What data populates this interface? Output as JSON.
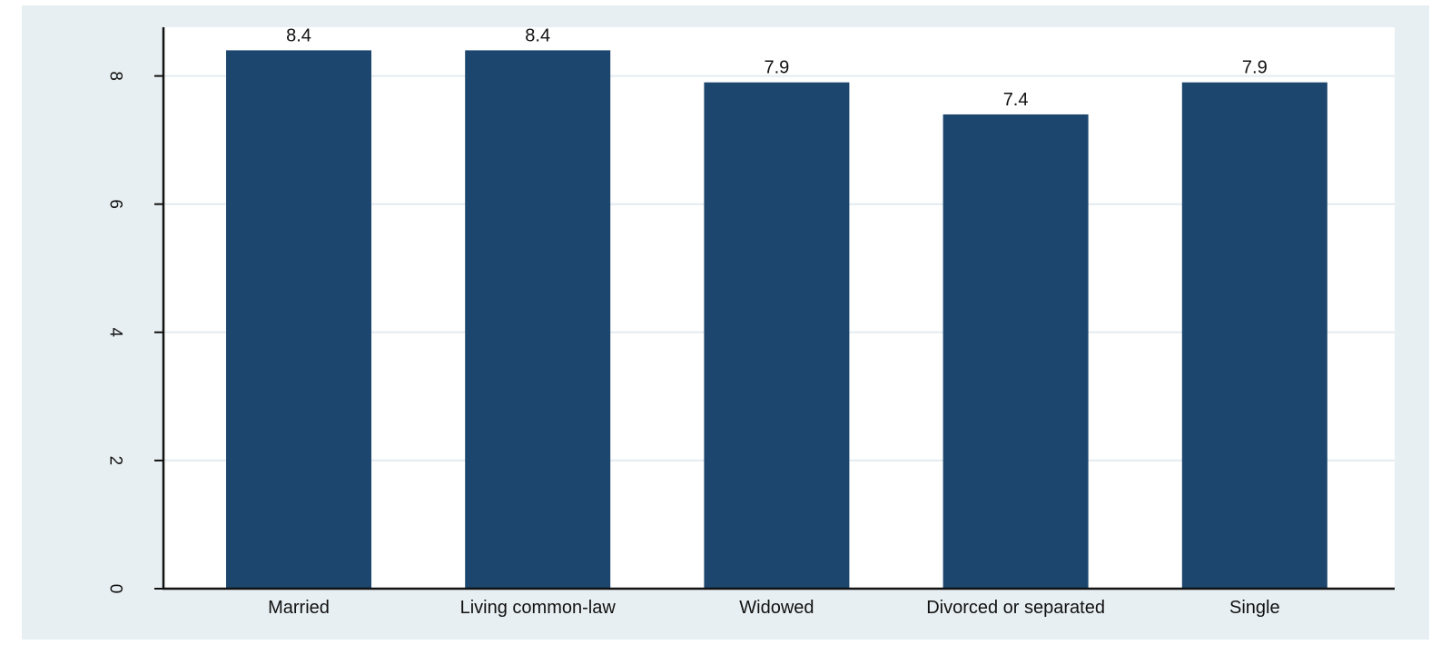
{
  "chart_data": {
    "type": "bar",
    "title": "",
    "xlabel": "",
    "ylabel": "",
    "categories": [
      "Married",
      "Living common-law",
      "Widowed",
      "Divorced or separated",
      "Single"
    ],
    "values": [
      8.4,
      8.4,
      7.9,
      7.4,
      7.9
    ],
    "value_labels": [
      "8.4",
      "8.4",
      "7.9",
      "7.4",
      "7.9"
    ],
    "ylim": [
      0,
      8.76
    ],
    "yticks": [
      0,
      2,
      4,
      6,
      8
    ],
    "ytick_labels": [
      "0",
      "2",
      "4",
      "6",
      "8"
    ],
    "grid": true,
    "legend": "none",
    "colors": {
      "bar": "#1c466e",
      "plot_background": "#ffffff",
      "outer_background": "#e8eff2",
      "grid": "#e3ecef",
      "axis": "#111111"
    }
  }
}
